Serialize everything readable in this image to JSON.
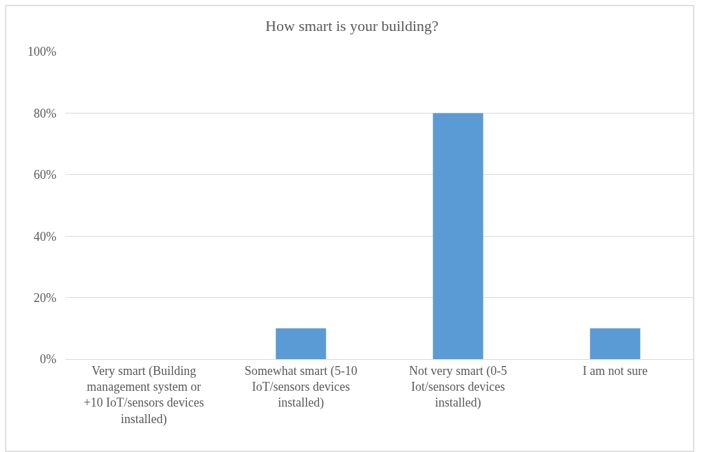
{
  "chart_data": {
    "type": "bar",
    "title": "How smart is your building?",
    "categories": [
      "Very smart (Building management system or +10 IoT/sensors devices installed)",
      "Somewhat smart (5-10 IoT/sensors devices installed)",
      "Not very smart (0-5 Iot/sensors devices installed)",
      "I am not sure"
    ],
    "values": [
      0,
      10,
      80,
      10
    ],
    "color": "#5b9bd5",
    "ylim": [
      0,
      100
    ],
    "yticks": [
      {
        "value": 0,
        "label": "0%"
      },
      {
        "value": 20,
        "label": "20%"
      },
      {
        "value": 40,
        "label": "40%"
      },
      {
        "value": 60,
        "label": "60%"
      },
      {
        "value": 80,
        "label": "80%"
      },
      {
        "value": 100,
        "label": "100%"
      }
    ],
    "grid": "y"
  }
}
